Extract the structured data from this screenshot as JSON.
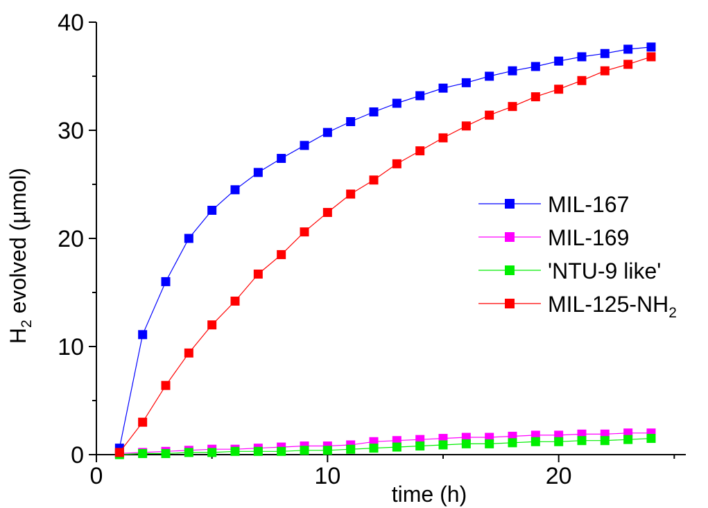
{
  "chart_data": {
    "type": "line",
    "xlabel": "time (h)",
    "ylabel": {
      "prefix": "H",
      "subscript": "2",
      "suffix": " evolved (µmol)"
    },
    "xlim": [
      0,
      25.5
    ],
    "ylim": [
      0,
      40
    ],
    "xticks": [
      0,
      10,
      20
    ],
    "yticks": [
      0,
      10,
      20,
      30,
      40
    ],
    "grid": false,
    "legend_position": "right",
    "series": [
      {
        "name": "MIL-167",
        "color": "#0000ff",
        "marker": "square",
        "x": [
          1,
          2,
          3,
          4,
          5,
          6,
          7,
          8,
          9,
          10,
          11,
          12,
          13,
          14,
          15,
          16,
          17,
          18,
          19,
          20,
          21,
          22,
          23,
          24
        ],
        "y": [
          0.6,
          11.1,
          16.0,
          20.0,
          22.6,
          24.5,
          26.1,
          27.4,
          28.6,
          29.8,
          30.8,
          31.7,
          32.5,
          33.2,
          33.9,
          34.4,
          35.0,
          35.5,
          35.9,
          36.4,
          36.8,
          37.1,
          37.5,
          37.7
        ]
      },
      {
        "name": "MIL-169",
        "color": "#ff00ff",
        "marker": "square",
        "x": [
          1,
          2,
          3,
          4,
          5,
          6,
          7,
          8,
          9,
          10,
          11,
          12,
          13,
          14,
          15,
          16,
          17,
          18,
          19,
          20,
          21,
          22,
          23,
          24
        ],
        "y": [
          0.1,
          0.2,
          0.3,
          0.4,
          0.5,
          0.5,
          0.6,
          0.7,
          0.8,
          0.8,
          0.9,
          1.2,
          1.3,
          1.4,
          1.5,
          1.6,
          1.6,
          1.7,
          1.8,
          1.8,
          1.9,
          1.9,
          2.0,
          2.0
        ]
      },
      {
        "name": "'NTU-9 like'",
        "color": "#00ee00",
        "marker": "square",
        "x": [
          1,
          2,
          3,
          4,
          5,
          6,
          7,
          8,
          9,
          10,
          11,
          12,
          13,
          14,
          15,
          16,
          17,
          18,
          19,
          20,
          21,
          22,
          23,
          24
        ],
        "y": [
          0.0,
          0.1,
          0.1,
          0.2,
          0.2,
          0.3,
          0.3,
          0.3,
          0.4,
          0.4,
          0.5,
          0.6,
          0.7,
          0.8,
          0.9,
          1.0,
          1.0,
          1.1,
          1.2,
          1.2,
          1.3,
          1.3,
          1.4,
          1.5
        ]
      },
      {
        "name": "MIL-125-NH",
        "name_subscript": "2",
        "color": "#ff0000",
        "marker": "square",
        "x": [
          1,
          2,
          3,
          4,
          5,
          6,
          7,
          8,
          9,
          10,
          11,
          12,
          13,
          14,
          15,
          16,
          17,
          18,
          19,
          20,
          21,
          22,
          23,
          24
        ],
        "y": [
          0.2,
          3.0,
          6.4,
          9.4,
          12.0,
          14.2,
          16.7,
          18.5,
          20.6,
          22.4,
          24.1,
          25.4,
          26.9,
          28.1,
          29.3,
          30.4,
          31.4,
          32.2,
          33.1,
          33.8,
          34.6,
          35.5,
          36.1,
          36.8
        ]
      }
    ]
  }
}
